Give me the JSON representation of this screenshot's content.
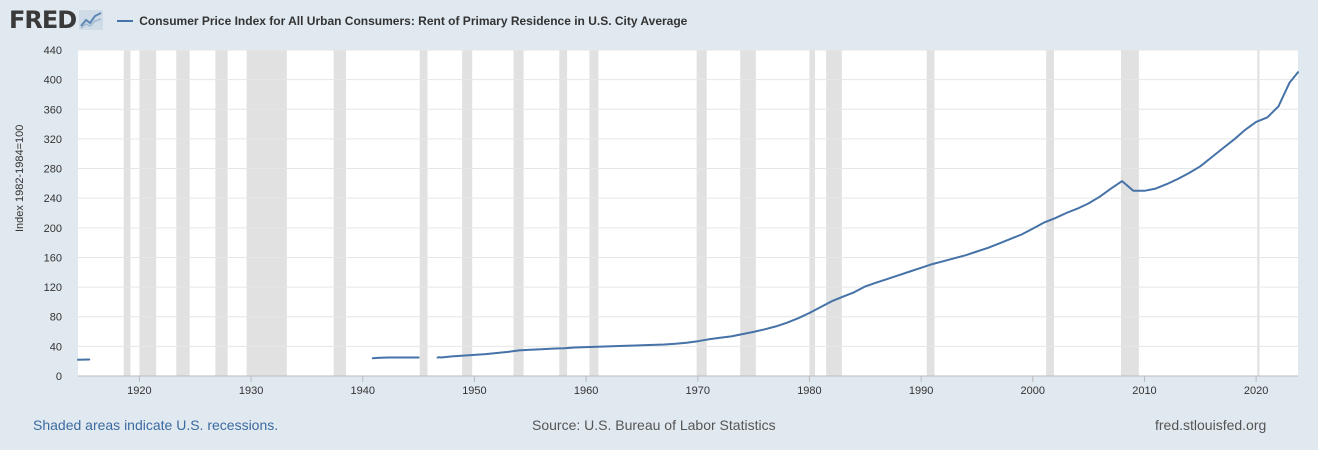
{
  "header": {
    "logo_text": "FRED",
    "legend_label": "Consumer Price Index for All Urban Consumers: Rent of Primary Residence in U.S. City Average"
  },
  "colors": {
    "series": "#4572a7",
    "recession": "#e1e1e1",
    "grid": "#e6e6e6",
    "background": "#e1e9f0"
  },
  "footer": {
    "recession_note": "Shaded areas indicate U.S. recessions.",
    "source": "Source: U.S. Bureau of Labor Statistics",
    "site": "fred.stlouisfed.org"
  },
  "chart_data": {
    "type": "line",
    "title": "Consumer Price Index for All Urban Consumers: Rent of Primary Residence in U.S. City Average",
    "xlabel": "",
    "ylabel": "Index 1982-1984=100",
    "xlim": [
      1914.5,
      2023.75
    ],
    "ylim": [
      0,
      440
    ],
    "yticks": [
      0,
      40,
      80,
      120,
      160,
      200,
      240,
      280,
      320,
      360,
      400,
      440
    ],
    "xticks": [
      1920,
      1930,
      1940,
      1950,
      1960,
      1970,
      1980,
      1990,
      2000,
      2010,
      2020
    ],
    "grid": true,
    "recessions": [
      [
        1918.6,
        1919.2
      ],
      [
        1920.0,
        1921.5
      ],
      [
        1923.3,
        1924.5
      ],
      [
        1926.8,
        1927.9
      ],
      [
        1929.6,
        1933.2
      ],
      [
        1937.4,
        1938.5
      ],
      [
        1945.1,
        1945.8
      ],
      [
        1948.9,
        1949.8
      ],
      [
        1953.5,
        1954.4
      ],
      [
        1957.6,
        1958.3
      ],
      [
        1960.3,
        1961.1
      ],
      [
        1969.9,
        1970.8
      ],
      [
        1973.8,
        1975.2
      ],
      [
        1980.0,
        1980.5
      ],
      [
        1981.5,
        1982.9
      ],
      [
        1990.5,
        1991.2
      ],
      [
        2001.2,
        2001.9
      ],
      [
        2007.9,
        2009.5
      ],
      [
        2020.1,
        2020.3
      ]
    ],
    "series": [
      {
        "name": "Rent of Primary Residence",
        "segments": [
          [
            [
              1914.5,
              22
            ],
            [
              1915.5,
              22.3
            ]
          ],
          [
            [
              1940.9,
              24
            ],
            [
              1941.5,
              24.5
            ],
            [
              1942.3,
              25
            ],
            [
              1943,
              25
            ],
            [
              1944,
              25
            ],
            [
              1945.0,
              25
            ]
          ],
          [
            [
              1946.7,
              25
            ],
            [
              1946.9,
              25.2
            ]
          ],
          [
            [
              1947.0,
              25
            ],
            [
              1948,
              26.5
            ],
            [
              1949,
              27.5
            ],
            [
              1950,
              28.5
            ],
            [
              1951,
              29.5
            ],
            [
              1952,
              31
            ],
            [
              1953,
              32.5
            ],
            [
              1954,
              34.5
            ],
            [
              1955,
              35.5
            ],
            [
              1956,
              36
            ],
            [
              1957,
              37
            ],
            [
              1958,
              37.5
            ],
            [
              1959,
              38.5
            ],
            [
              1960,
              39
            ],
            [
              1961,
              39.5
            ],
            [
              1962,
              40
            ],
            [
              1963,
              40.5
            ],
            [
              1964,
              41
            ],
            [
              1965,
              41.5
            ],
            [
              1966,
              42
            ],
            [
              1967,
              42.5
            ],
            [
              1968,
              43.5
            ],
            [
              1969,
              45
            ],
            [
              1970,
              47
            ],
            [
              1971,
              49.5
            ],
            [
              1972,
              51.5
            ],
            [
              1973,
              53.5
            ],
            [
              1974,
              56.5
            ],
            [
              1975,
              59.5
            ],
            [
              1976,
              63
            ],
            [
              1977,
              67
            ],
            [
              1978,
              72
            ],
            [
              1979,
              78
            ],
            [
              1980,
              85
            ],
            [
              1981,
              93
            ],
            [
              1982,
              101
            ],
            [
              1983,
              107
            ],
            [
              1984,
              113
            ],
            [
              1985,
              121
            ],
            [
              1986,
              126
            ],
            [
              1987,
              131
            ],
            [
              1988,
              136
            ],
            [
              1989,
              141
            ],
            [
              1990,
              146
            ],
            [
              1991,
              151
            ],
            [
              1992,
              155
            ],
            [
              1993,
              159
            ],
            [
              1994,
              163
            ],
            [
              1995,
              168
            ],
            [
              1996,
              173
            ],
            [
              1997,
              179
            ],
            [
              1998,
              185
            ],
            [
              1999,
              191
            ],
            [
              2000,
              199
            ],
            [
              2001,
              207
            ],
            [
              2002,
              213
            ],
            [
              2003,
              220
            ],
            [
              2004,
              226
            ],
            [
              2005,
              233
            ],
            [
              2006,
              242
            ],
            [
              2007,
              253
            ],
            [
              2008,
              263
            ],
            [
              2009,
              250
            ],
            [
              2010,
              250
            ],
            [
              2011,
              253
            ],
            [
              2012,
              259
            ],
            [
              2013,
              266
            ],
            [
              2014,
              274
            ],
            [
              2015,
              283
            ],
            [
              2016,
              295
            ],
            [
              2017,
              307
            ],
            [
              2018,
              319
            ],
            [
              2019,
              332
            ],
            [
              2020,
              343
            ],
            [
              2021,
              349
            ],
            [
              2022,
              364
            ],
            [
              2022.5,
              380
            ],
            [
              2023,
              396
            ],
            [
              2023.75,
              410
            ]
          ]
        ]
      }
    ]
  }
}
